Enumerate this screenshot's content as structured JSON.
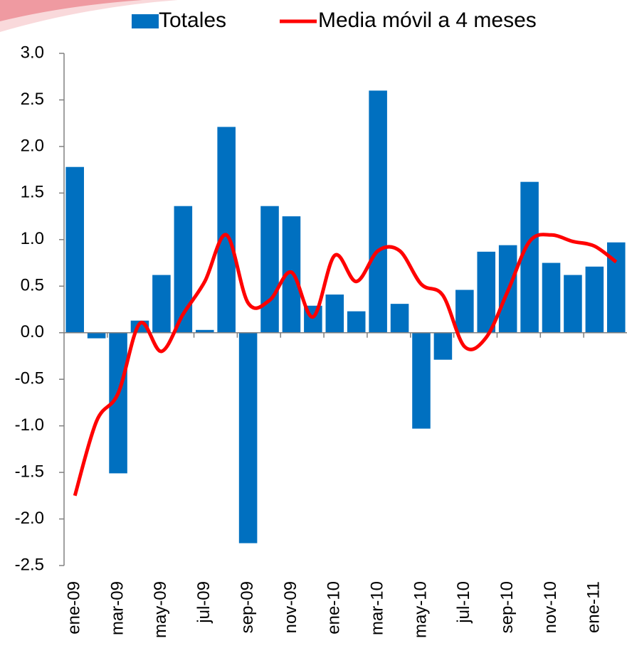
{
  "chart_data": {
    "type": "bar",
    "categories": [
      "ene-09",
      null,
      "mar-09",
      null,
      "may-09",
      null,
      "jul-09",
      null,
      "sep-09",
      null,
      "nov-09",
      null,
      "ene-10",
      null,
      "mar-10",
      null,
      "may-10",
      null,
      "jul-10",
      null,
      "sep-10",
      null,
      "nov-10",
      null,
      "ene-11",
      null
    ],
    "series": [
      {
        "name": "Totales",
        "type": "bar",
        "color": "#0070c0",
        "values": [
          1.78,
          -0.06,
          -1.51,
          0.13,
          0.62,
          1.36,
          0.03,
          2.21,
          -2.26,
          1.36,
          1.25,
          0.29,
          0.41,
          0.23,
          2.6,
          0.31,
          -1.03,
          -0.29,
          0.46,
          0.87,
          0.94,
          1.62,
          0.75,
          0.62,
          0.71,
          0.97
        ]
      },
      {
        "name": "Media móvil a 4 meses",
        "type": "line",
        "color": "#ff0000",
        "values": [
          -1.75,
          -0.95,
          -0.65,
          0.1,
          -0.2,
          0.2,
          0.55,
          1.05,
          0.32,
          0.35,
          0.65,
          0.17,
          0.83,
          0.55,
          0.88,
          0.88,
          0.52,
          0.4,
          -0.15,
          -0.05,
          0.45,
          0.98,
          1.05,
          0.98,
          0.93,
          0.76
        ]
      }
    ],
    "ylim": [
      -2.5,
      3.0
    ],
    "yticks": [
      {
        "value": -2.5,
        "label": "-2.5"
      },
      {
        "value": -2,
        "label": "-2.0"
      },
      {
        "value": -1.5,
        "label": "-1.5"
      },
      {
        "value": -1,
        "label": "-1.0"
      },
      {
        "value": -0.5,
        "label": "-0.5"
      },
      {
        "value": 0,
        "label": "0.0"
      },
      {
        "value": 0.5,
        "label": "0.5"
      },
      {
        "value": 1,
        "label": "1.0"
      },
      {
        "value": 1.5,
        "label": "1.5"
      },
      {
        "value": 2,
        "label": "2.0"
      },
      {
        "value": 2.5,
        "label": "2.5"
      },
      {
        "value": 3,
        "label": "3.0"
      }
    ],
    "grid": false,
    "legend": "top"
  }
}
